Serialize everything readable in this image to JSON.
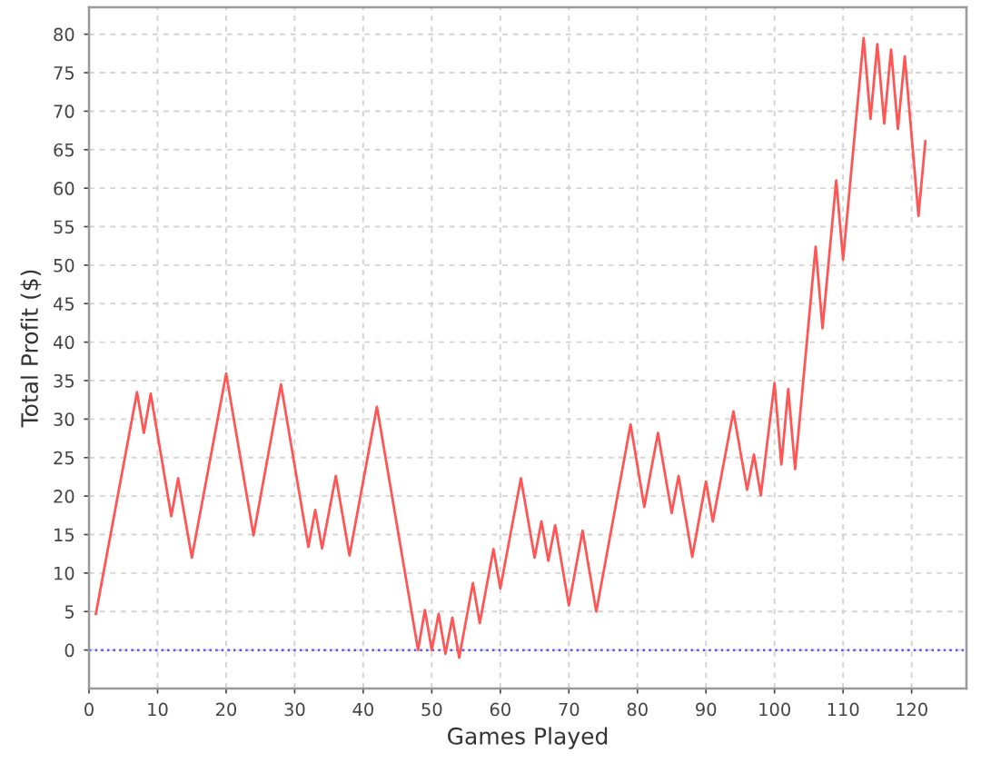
{
  "chart_data": {
    "type": "line",
    "xlabel": "Games Played",
    "ylabel": "Total Profit ($)",
    "series": [
      {
        "color": "#ff5555",
        "x": [
          1,
          7,
          8,
          9,
          12,
          13,
          15,
          20,
          24,
          28,
          32,
          33,
          34,
          36,
          38,
          42,
          48,
          49,
          50,
          51,
          52,
          53,
          54,
          56,
          57,
          59,
          60,
          63,
          65,
          66,
          67,
          68,
          70,
          72,
          74,
          79,
          81,
          83,
          85,
          86,
          88,
          90,
          91,
          94,
          96,
          97,
          98,
          100,
          101,
          102,
          103,
          106,
          107,
          109,
          110,
          113,
          114,
          115,
          116,
          117,
          118,
          119,
          121,
          122
        ],
        "values": [
          4.7,
          33.5,
          28.2,
          33.3,
          17.4,
          22.3,
          12.0,
          35.9,
          14.9,
          34.5,
          13.4,
          18.2,
          13.2,
          22.6,
          12.3,
          31.6,
          0,
          5.2,
          0,
          4.7,
          -0.5,
          4.2,
          -1.0,
          8.7,
          3.5,
          13.1,
          8.0,
          22.3,
          12.0,
          16.7,
          11.6,
          16.2,
          5.8,
          15.5,
          5.0,
          29.3,
          18.6,
          28.2,
          17.8,
          22.6,
          12.1,
          21.9,
          16.7,
          31.0,
          20.8,
          25.4,
          20.1,
          34.7,
          24.1,
          33.9,
          23.5,
          52.4,
          41.8,
          61.0,
          50.7,
          79.5,
          69.0,
          78.7,
          68.4,
          78.0,
          67.7,
          77.1,
          56.4,
          66.1
        ]
      }
    ],
    "xlim": [
      0,
      128
    ],
    "ylim": [
      -5,
      83.5
    ],
    "xticks": [
      0,
      10,
      20,
      30,
      40,
      50,
      60,
      70,
      80,
      90,
      100,
      110,
      120
    ],
    "yticks": [
      0,
      5,
      10,
      15,
      20,
      25,
      30,
      35,
      40,
      45,
      50,
      55,
      60,
      65,
      70,
      75,
      80
    ],
    "grid": true,
    "ref_lines": [
      {
        "axis": "y",
        "value": 0,
        "color": "#5555ff",
        "line_style": "dotted"
      }
    ]
  }
}
